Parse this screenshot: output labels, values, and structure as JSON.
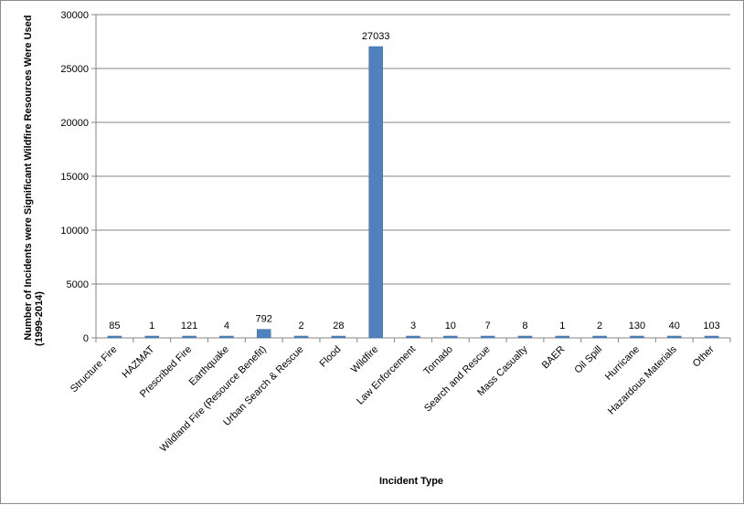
{
  "chart_data": {
    "type": "bar",
    "categories": [
      "Structure Fire",
      "HAZMAT",
      "Prescribed Fire",
      "Earthquake",
      "Wildland Fire (Resource Benefit)",
      "Urban Search & Rescue",
      "Flood",
      "Wildfire",
      "Law Enforcement",
      "Tornado",
      "Search and Rescue",
      "Mass Casualty",
      "BAER",
      "Oil Spill",
      "Hurricane",
      "Hazardous Materials",
      "Other"
    ],
    "values": [
      85,
      1,
      121,
      4,
      792,
      2,
      28,
      27033,
      3,
      10,
      7,
      8,
      1,
      2,
      130,
      40,
      103
    ],
    "title": "",
    "xlabel": "Incident Type",
    "ylabel_line1": "Number of Incidents were Significant  Wildfire  Resources  Were Used",
    "ylabel_line2": "(1999-2014)",
    "ylim": [
      0,
      30000
    ],
    "yticks": [
      "0",
      "5000",
      "10000",
      "15000",
      "20000",
      "25000",
      "30000"
    ],
    "grid": true,
    "legend": "none",
    "bar_color": "#4f81bd"
  }
}
